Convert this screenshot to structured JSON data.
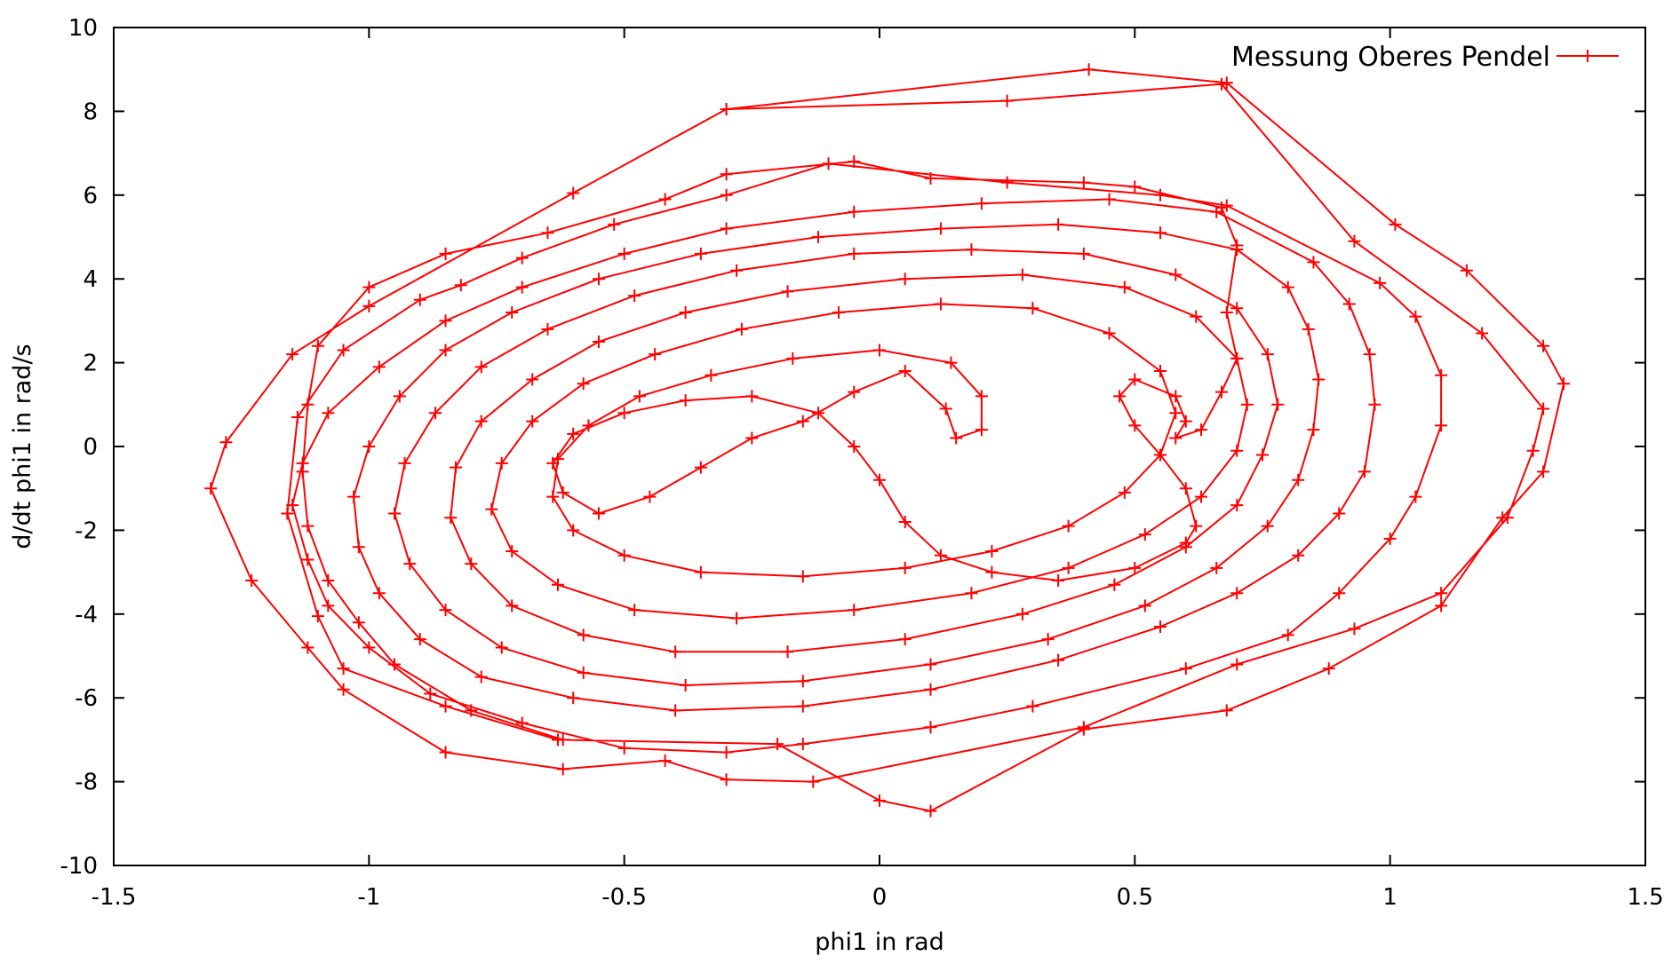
{
  "chart_data": {
    "type": "line",
    "title": "",
    "xlabel": "phi1 in rad",
    "ylabel": "d/dt phi1 in rad/s",
    "xlim": [
      -1.5,
      1.5
    ],
    "ylim": [
      -10,
      10
    ],
    "xticks": [
      "-1.5",
      "-1",
      "-0.5",
      "0",
      "0.5",
      "1",
      "1.5"
    ],
    "yticks": [
      "-10",
      "-8",
      "-6",
      "-4",
      "-2",
      "0",
      "2",
      "4",
      "6",
      "8",
      "10"
    ],
    "xtick_values": [
      -1.5,
      -1,
      -0.5,
      0,
      0.5,
      1,
      1.5
    ],
    "ytick_values": [
      -10,
      -8,
      -6,
      -4,
      -2,
      0,
      2,
      4,
      6,
      8,
      10
    ],
    "grid": false,
    "legend_position": "top-right",
    "line_color": "#ff0000",
    "marker": "plus",
    "series": [
      {
        "name": "Messung Oberes Pendel",
        "points": [
          [
            -0.3,
            8.05
          ],
          [
            0.25,
            8.25
          ],
          [
            0.67,
            8.65
          ],
          [
            0.93,
            4.9
          ],
          [
            1.18,
            2.7
          ],
          [
            1.3,
            0.9
          ],
          [
            1.28,
            -0.1
          ],
          [
            1.23,
            -1.7
          ],
          [
            1.1,
            -3.5
          ],
          [
            0.93,
            -4.35
          ],
          [
            0.7,
            -5.2
          ],
          [
            0.4,
            -6.7
          ],
          [
            -0.13,
            -8.0
          ],
          [
            -0.3,
            -7.95
          ],
          [
            -0.42,
            -7.5
          ],
          [
            -0.62,
            -7.7
          ],
          [
            -0.85,
            -7.3
          ],
          [
            -1.05,
            -5.8
          ],
          [
            -1.12,
            -4.8
          ],
          [
            -1.23,
            -3.2
          ],
          [
            -1.31,
            -1.0
          ],
          [
            -1.28,
            0.1
          ],
          [
            -1.15,
            2.2
          ],
          [
            -1.0,
            3.35
          ],
          [
            -0.6,
            6.05
          ],
          [
            -0.3,
            8.05
          ],
          [
            0.41,
            9.0
          ],
          [
            0.68,
            8.68
          ],
          [
            1.01,
            5.3
          ],
          [
            1.15,
            4.2
          ],
          [
            1.3,
            2.4
          ],
          [
            1.34,
            1.5
          ],
          [
            1.3,
            -0.6
          ],
          [
            1.22,
            -1.7
          ],
          [
            1.1,
            -3.8
          ],
          [
            0.88,
            -5.3
          ],
          [
            0.68,
            -6.3
          ],
          [
            0.4,
            -6.75
          ],
          [
            0.1,
            -8.7
          ],
          [
            0.0,
            -8.45
          ],
          [
            -0.2,
            -7.1
          ],
          [
            -0.63,
            -7.0
          ],
          [
            -0.85,
            -6.2
          ],
          [
            -1.05,
            -5.3
          ],
          [
            -1.1,
            -4.05
          ],
          [
            -1.16,
            -1.6
          ],
          [
            -1.14,
            0.7
          ],
          [
            -1.05,
            2.3
          ],
          [
            -0.9,
            3.5
          ],
          [
            -0.82,
            3.85
          ],
          [
            -0.7,
            4.5
          ],
          [
            -0.52,
            5.3
          ],
          [
            -0.3,
            6.0
          ],
          [
            -0.1,
            6.75
          ],
          [
            0.25,
            6.3
          ],
          [
            0.55,
            6.0
          ],
          [
            0.68,
            5.75
          ],
          [
            0.98,
            3.9
          ],
          [
            1.05,
            3.1
          ],
          [
            1.1,
            1.7
          ],
          [
            1.1,
            0.5
          ],
          [
            1.05,
            -1.2
          ],
          [
            1.0,
            -2.2
          ],
          [
            0.9,
            -3.5
          ],
          [
            0.8,
            -4.5
          ],
          [
            0.6,
            -5.3
          ],
          [
            0.3,
            -6.2
          ],
          [
            0.1,
            -6.7
          ],
          [
            -0.15,
            -7.1
          ],
          [
            -0.3,
            -7.3
          ],
          [
            -0.5,
            -7.2
          ],
          [
            -0.7,
            -6.6
          ],
          [
            -0.88,
            -5.9
          ],
          [
            -1.0,
            -4.8
          ],
          [
            -1.08,
            -3.8
          ],
          [
            -1.12,
            -2.7
          ],
          [
            -1.15,
            -1.4
          ],
          [
            -1.13,
            -0.4
          ],
          [
            -1.08,
            0.8
          ],
          [
            -0.98,
            1.9
          ],
          [
            -0.85,
            3.0
          ],
          [
            -0.7,
            3.8
          ],
          [
            -0.5,
            4.6
          ],
          [
            -0.3,
            5.2
          ],
          [
            -0.05,
            5.6
          ],
          [
            0.2,
            5.8
          ],
          [
            0.45,
            5.9
          ],
          [
            0.66,
            5.6
          ],
          [
            0.85,
            4.4
          ],
          [
            0.92,
            3.4
          ],
          [
            0.96,
            2.2
          ],
          [
            0.97,
            1.0
          ],
          [
            0.95,
            -0.6
          ],
          [
            0.9,
            -1.6
          ],
          [
            0.82,
            -2.6
          ],
          [
            0.7,
            -3.5
          ],
          [
            0.55,
            -4.3
          ],
          [
            0.35,
            -5.1
          ],
          [
            0.1,
            -5.8
          ],
          [
            -0.15,
            -6.2
          ],
          [
            -0.4,
            -6.3
          ],
          [
            -0.6,
            -6.0
          ],
          [
            -0.78,
            -5.5
          ],
          [
            -0.9,
            -4.6
          ],
          [
            -0.98,
            -3.5
          ],
          [
            -1.02,
            -2.4
          ],
          [
            -1.03,
            -1.2
          ],
          [
            -1.0,
            0.0
          ],
          [
            -0.94,
            1.2
          ],
          [
            -0.85,
            2.3
          ],
          [
            -0.72,
            3.2
          ],
          [
            -0.55,
            4.0
          ],
          [
            -0.35,
            4.6
          ],
          [
            -0.12,
            5.0
          ],
          [
            0.12,
            5.2
          ],
          [
            0.35,
            5.3
          ],
          [
            0.55,
            5.1
          ],
          [
            0.7,
            4.7
          ],
          [
            0.8,
            3.8
          ],
          [
            0.84,
            2.8
          ],
          [
            0.86,
            1.6
          ],
          [
            0.85,
            0.4
          ],
          [
            0.82,
            -0.8
          ],
          [
            0.76,
            -1.9
          ],
          [
            0.66,
            -2.9
          ],
          [
            0.52,
            -3.8
          ],
          [
            0.33,
            -4.6
          ],
          [
            0.1,
            -5.2
          ],
          [
            -0.15,
            -5.6
          ],
          [
            -0.38,
            -5.7
          ],
          [
            -0.58,
            -5.4
          ],
          [
            -0.74,
            -4.8
          ],
          [
            -0.85,
            -3.9
          ],
          [
            -0.92,
            -2.8
          ],
          [
            -0.95,
            -1.6
          ],
          [
            -0.93,
            -0.4
          ],
          [
            -0.87,
            0.8
          ],
          [
            -0.78,
            1.9
          ],
          [
            -0.65,
            2.8
          ],
          [
            -0.48,
            3.6
          ],
          [
            -0.28,
            4.2
          ],
          [
            -0.05,
            4.6
          ],
          [
            0.18,
            4.7
          ],
          [
            0.4,
            4.6
          ],
          [
            0.58,
            4.1
          ],
          [
            0.7,
            3.3
          ],
          [
            0.76,
            2.2
          ],
          [
            0.78,
            1.0
          ],
          [
            0.75,
            -0.2
          ],
          [
            0.7,
            -1.4
          ],
          [
            0.6,
            -2.4
          ],
          [
            0.46,
            -3.3
          ],
          [
            0.28,
            -4.0
          ],
          [
            0.05,
            -4.6
          ],
          [
            -0.18,
            -4.9
          ],
          [
            -0.4,
            -4.9
          ],
          [
            -0.58,
            -4.5
          ],
          [
            -0.72,
            -3.8
          ],
          [
            -0.8,
            -2.8
          ],
          [
            -0.84,
            -1.7
          ],
          [
            -0.83,
            -0.5
          ],
          [
            -0.78,
            0.6
          ],
          [
            -0.68,
            1.6
          ],
          [
            -0.55,
            2.5
          ],
          [
            -0.38,
            3.2
          ],
          [
            -0.18,
            3.7
          ],
          [
            0.05,
            4.0
          ],
          [
            0.28,
            4.1
          ],
          [
            0.48,
            3.8
          ],
          [
            0.62,
            3.1
          ],
          [
            0.7,
            2.1
          ],
          [
            0.72,
            1.0
          ],
          [
            0.7,
            -0.1
          ],
          [
            0.63,
            -1.2
          ],
          [
            0.52,
            -2.1
          ],
          [
            0.37,
            -2.9
          ],
          [
            0.18,
            -3.5
          ],
          [
            -0.05,
            -3.9
          ],
          [
            -0.28,
            -4.1
          ],
          [
            -0.48,
            -3.9
          ],
          [
            -0.63,
            -3.3
          ],
          [
            -0.72,
            -2.5
          ],
          [
            -0.76,
            -1.5
          ],
          [
            -0.74,
            -0.4
          ],
          [
            -0.68,
            0.6
          ],
          [
            -0.58,
            1.5
          ],
          [
            -0.44,
            2.2
          ],
          [
            -0.27,
            2.8
          ],
          [
            -0.08,
            3.2
          ],
          [
            0.12,
            3.4
          ],
          [
            0.3,
            3.3
          ],
          [
            0.45,
            2.7
          ],
          [
            0.55,
            1.8
          ],
          [
            0.58,
            0.8
          ],
          [
            0.55,
            -0.2
          ],
          [
            0.48,
            -1.1
          ],
          [
            0.37,
            -1.9
          ],
          [
            0.22,
            -2.5
          ],
          [
            0.05,
            -2.9
          ],
          [
            -0.15,
            -3.1
          ],
          [
            -0.35,
            -3.0
          ],
          [
            -0.5,
            -2.6
          ],
          [
            -0.6,
            -2.0
          ],
          [
            -0.64,
            -1.2
          ],
          [
            -0.63,
            -0.3
          ],
          [
            -0.57,
            0.5
          ],
          [
            -0.47,
            1.2
          ],
          [
            -0.33,
            1.7
          ],
          [
            -0.17,
            2.1
          ],
          [
            0.0,
            2.3
          ],
          [
            0.14,
            2.0
          ],
          [
            0.2,
            1.2
          ],
          [
            0.2,
            0.4
          ],
          [
            0.15,
            0.2
          ],
          [
            0.13,
            0.9
          ],
          [
            0.05,
            1.8
          ],
          [
            -0.05,
            1.3
          ],
          [
            -0.15,
            0.6
          ],
          [
            -0.25,
            0.2
          ],
          [
            -0.35,
            -0.5
          ],
          [
            -0.45,
            -1.2
          ],
          [
            -0.55,
            -1.6
          ],
          [
            -0.62,
            -1.1
          ],
          [
            -0.64,
            -0.4
          ],
          [
            -0.6,
            0.3
          ],
          [
            -0.5,
            0.8
          ],
          [
            -0.38,
            1.1
          ],
          [
            -0.25,
            1.2
          ],
          [
            -0.12,
            0.8
          ],
          [
            -0.05,
            0.0
          ],
          [
            0.0,
            -0.8
          ],
          [
            0.05,
            -1.8
          ],
          [
            0.12,
            -2.6
          ],
          [
            0.22,
            -3.0
          ],
          [
            0.35,
            -3.2
          ],
          [
            0.5,
            -2.9
          ],
          [
            0.6,
            -2.3
          ],
          [
            0.62,
            -1.9
          ],
          [
            0.6,
            -1.0
          ],
          [
            0.55,
            -0.2
          ],
          [
            0.5,
            0.5
          ],
          [
            0.47,
            1.2
          ],
          [
            0.5,
            1.6
          ],
          [
            0.58,
            1.2
          ],
          [
            0.6,
            0.6
          ],
          [
            0.58,
            0.2
          ],
          [
            0.63,
            0.4
          ],
          [
            0.67,
            1.3
          ],
          [
            0.7,
            2.1
          ],
          [
            0.68,
            3.2
          ],
          [
            0.7,
            4.8
          ],
          [
            0.67,
            5.7
          ],
          [
            0.5,
            6.2
          ],
          [
            0.4,
            6.3
          ],
          [
            0.1,
            6.4
          ],
          [
            -0.05,
            6.8
          ],
          [
            -0.3,
            6.5
          ],
          [
            -0.42,
            5.9
          ],
          [
            -0.65,
            5.1
          ],
          [
            -0.85,
            4.6
          ],
          [
            -1.0,
            3.8
          ],
          [
            -1.1,
            2.4
          ],
          [
            -1.12,
            1.0
          ],
          [
            -1.13,
            -0.6
          ],
          [
            -1.12,
            -1.9
          ],
          [
            -1.08,
            -3.2
          ],
          [
            -1.02,
            -4.2
          ],
          [
            -0.95,
            -5.2
          ],
          [
            -0.8,
            -6.3
          ],
          [
            -0.62,
            -7.0
          ]
        ]
      }
    ]
  }
}
